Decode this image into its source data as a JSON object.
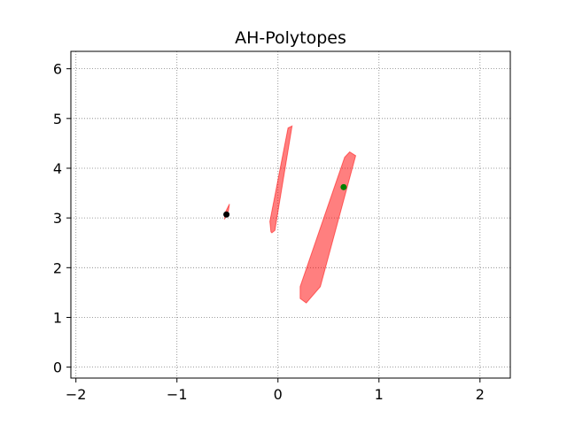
{
  "chart_data": {
    "type": "scatter",
    "title": "AH-Polytopes",
    "xlabel": "",
    "ylabel": "",
    "xlim": [
      -2.05,
      2.3
    ],
    "ylim": [
      -0.22,
      6.35
    ],
    "xticks": [
      -2,
      -1,
      0,
      1,
      2
    ],
    "xtick_labels": [
      "−2",
      "−1",
      "0",
      "1",
      "2"
    ],
    "yticks": [
      0,
      1,
      2,
      3,
      4,
      5,
      6
    ],
    "ytick_labels": [
      "0",
      "1",
      "2",
      "3",
      "4",
      "5",
      "6"
    ],
    "grid": true,
    "polygons": [
      {
        "color": "#ff0000",
        "opacity": 0.5,
        "points": [
          [
            -0.53,
            2.97
          ],
          [
            -0.49,
            3.15
          ],
          [
            -0.48,
            3.28
          ],
          [
            -0.52,
            3.12
          ]
        ]
      },
      {
        "color": "#ff0000",
        "opacity": 0.5,
        "points": [
          [
            -0.07,
            2.72
          ],
          [
            -0.08,
            2.93
          ],
          [
            0.1,
            4.81
          ],
          [
            0.14,
            4.85
          ],
          [
            -0.03,
            2.75
          ],
          [
            -0.06,
            2.7
          ]
        ]
      },
      {
        "color": "#ff0000",
        "opacity": 0.5,
        "points": [
          [
            0.22,
            1.38
          ],
          [
            0.28,
            1.29
          ],
          [
            0.42,
            1.62
          ],
          [
            0.77,
            4.25
          ],
          [
            0.71,
            4.33
          ],
          [
            0.66,
            4.22
          ],
          [
            0.22,
            1.62
          ]
        ]
      }
    ],
    "points": [
      {
        "x": -0.51,
        "y": 3.07,
        "color": "#000000"
      },
      {
        "x": 0.65,
        "y": 3.62,
        "color": "#008000"
      }
    ]
  }
}
